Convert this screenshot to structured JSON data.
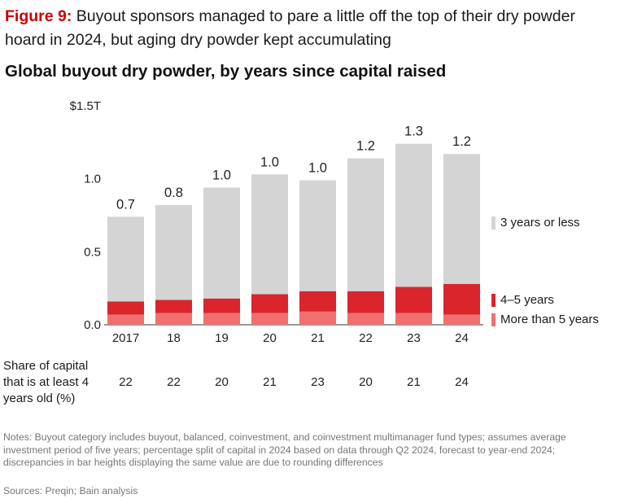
{
  "figure": {
    "label": "Figure 9:",
    "title": "Buyout sponsors managed to pare a little off the top of their dry powder hoard in 2024, but aging dry powder kept accumulating"
  },
  "chart_title": "Global buyout dry powder, by years since capital raised",
  "chart_data": {
    "type": "bar",
    "stacked": true,
    "title": "Global buyout dry powder, by years since capital raised",
    "categories": [
      "2017",
      "18",
      "19",
      "20",
      "21",
      "22",
      "23",
      "24"
    ],
    "series": [
      {
        "name": "More than 5 years",
        "color": "#f07070",
        "values": [
          0.07,
          0.08,
          0.08,
          0.08,
          0.09,
          0.08,
          0.08,
          0.07
        ]
      },
      {
        "name": "4–5 years",
        "color": "#d9252b",
        "values": [
          0.09,
          0.09,
          0.1,
          0.13,
          0.14,
          0.15,
          0.18,
          0.21
        ]
      },
      {
        "name": "3 years or less",
        "color": "#d4d4d4",
        "values": [
          0.58,
          0.65,
          0.76,
          0.82,
          0.76,
          0.91,
          0.98,
          0.89
        ]
      }
    ],
    "totals_labels": [
      "0.7",
      "0.8",
      "1.0",
      "1.0",
      "1.0",
      "1.2",
      "1.3",
      "1.2"
    ],
    "y_ticks": [
      "0.0",
      "0.5",
      "1.0",
      "$1.5T"
    ],
    "y_tick_values": [
      0,
      0.5,
      1.0,
      1.5
    ],
    "ylim": [
      0,
      1.5
    ],
    "grid": false,
    "legend_position": "right",
    "share_row": {
      "label": "Share of capital that is at least 4 years old (%)",
      "values": [
        "22",
        "22",
        "20",
        "21",
        "23",
        "20",
        "21",
        "24"
      ]
    }
  },
  "legend": [
    {
      "label": "3 years or less",
      "color": "#d4d4d4"
    },
    {
      "label": "4–5 years",
      "color": "#d9252b"
    },
    {
      "label": "More than 5 years",
      "color": "#f07070"
    }
  ],
  "notes": "Notes: Buyout category includes buyout, balanced, coinvestment, and coinvestment multimanager fund types; assumes average investment period of five years; percentage split of capital in 2024 based on data through Q2 2024, forecast to year-end 2024; discrepancies in bar heights displaying the same value are due to rounding differences",
  "sources": "Sources: Preqin; Bain analysis"
}
